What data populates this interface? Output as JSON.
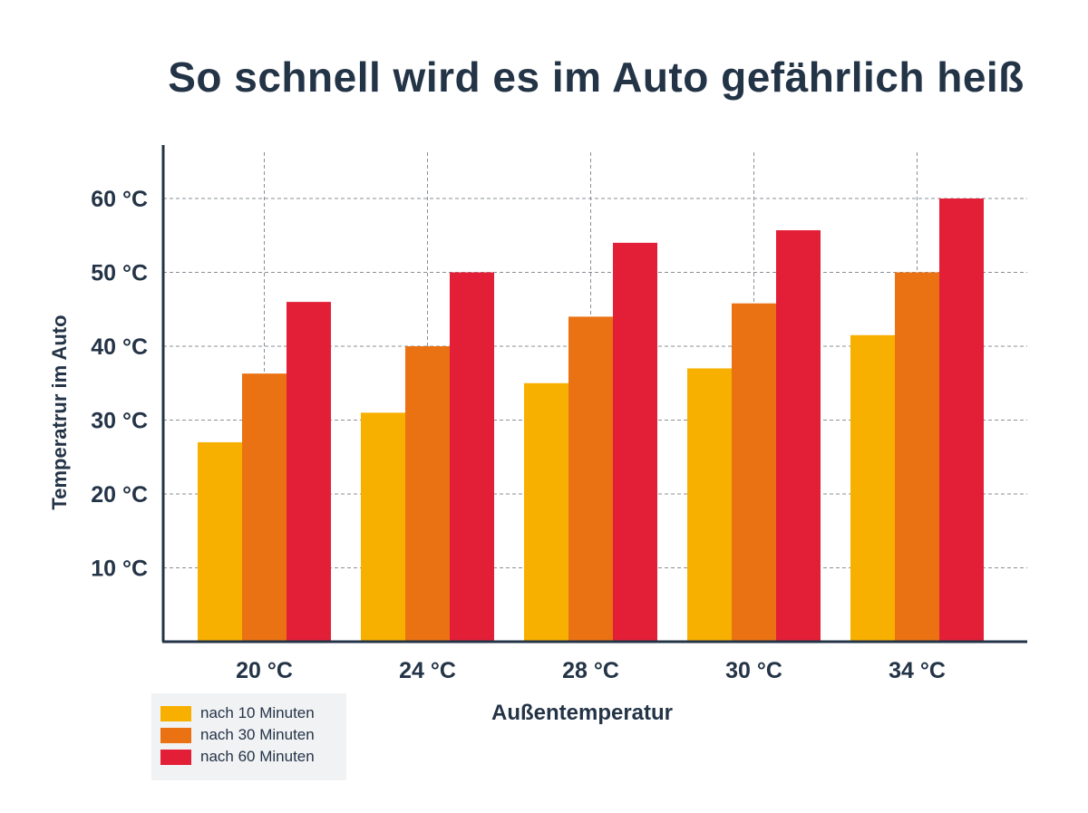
{
  "title": "So schnell wird es im Auto gefährlich heiß",
  "chart_data": {
    "type": "bar",
    "categories": [
      "20 °C",
      "24 °C",
      "28 °C",
      "30 °C",
      "34 °C"
    ],
    "series": [
      {
        "name": "nach 10 Minuten",
        "values": [
          27,
          31,
          35,
          37,
          41.5
        ],
        "color": "#f8b000"
      },
      {
        "name": "nach 30 Minuten",
        "values": [
          36.3,
          40,
          44,
          45.8,
          50
        ],
        "color": "#ea7213"
      },
      {
        "name": "nach 60 Minuten",
        "values": [
          46,
          50,
          54,
          55.7,
          60
        ],
        "color": "#e31f38"
      }
    ],
    "yticks": [
      "10 °C",
      "20 °C",
      "30 °C",
      "40 °C",
      "50 °C",
      "60 °C"
    ],
    "ytick_values": [
      10,
      20,
      30,
      40,
      50,
      60
    ],
    "ylim": [
      0,
      67
    ],
    "xlabel": "Außentemperatur",
    "ylabel": "Temperatrur im Auto",
    "grid": true,
    "grid_style": "dashed",
    "legend_position": "bottom-left",
    "axis_color": "#243447"
  }
}
